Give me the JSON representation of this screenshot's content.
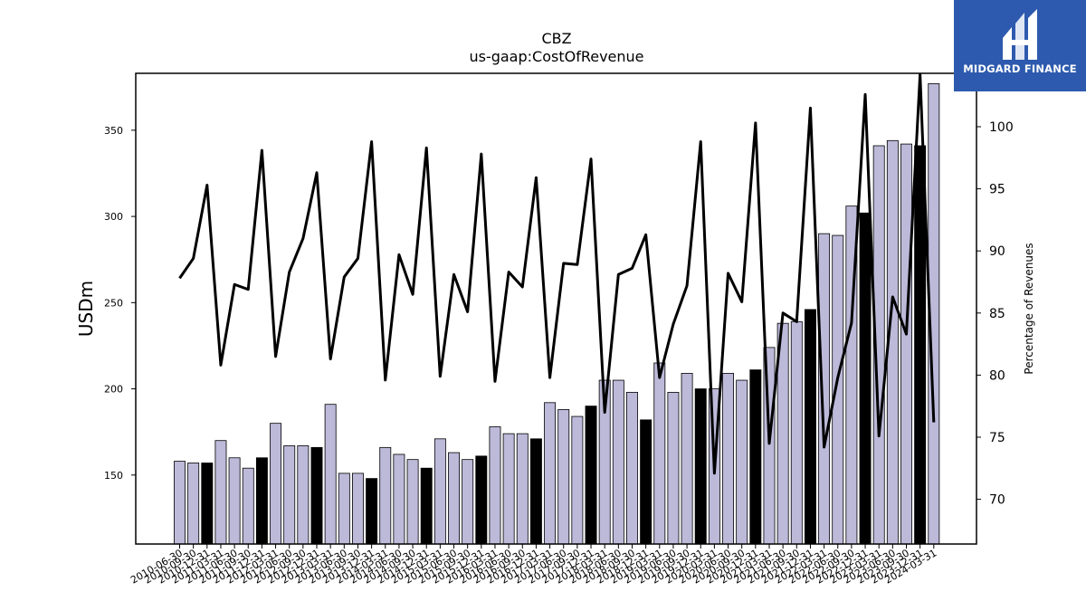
{
  "chart_data": {
    "type": "bar+line",
    "title": "CBZ",
    "subtitle": "us-gaap:CostOfRevenue",
    "ylabel_left": "USDm",
    "ylabel_right": "Percentage of Revenues",
    "ylim_left": [
      110,
      383
    ],
    "ylim_right": [
      66.4,
      104.3
    ],
    "yticks_left": [
      150,
      200,
      250,
      300,
      350
    ],
    "yticks_right": [
      70,
      75,
      80,
      85,
      90,
      95,
      100
    ],
    "x": [
      "2010-06-30",
      "2010-09-30",
      "2010-12-31",
      "2011-03-31",
      "2011-06-30",
      "2011-09-30",
      "2011-12-31",
      "2012-03-31",
      "2012-06-30",
      "2012-09-30",
      "2012-12-31",
      "2013-03-31",
      "2013-06-30",
      "2013-09-30",
      "2013-12-31",
      "2014-03-31",
      "2014-06-30",
      "2014-09-30",
      "2014-12-31",
      "2015-03-31",
      "2015-06-30",
      "2015-09-30",
      "2015-12-31",
      "2016-03-31",
      "2016-06-30",
      "2016-09-30",
      "2016-12-31",
      "2017-03-31",
      "2017-06-30",
      "2017-09-30",
      "2017-12-31",
      "2018-03-31",
      "2018-06-30",
      "2018-09-30",
      "2018-12-31",
      "2019-03-31",
      "2019-06-30",
      "2019-09-30",
      "2019-12-31",
      "2020-03-31",
      "2020-06-30",
      "2020-09-30",
      "2020-12-31",
      "2021-03-31",
      "2021-06-30",
      "2021-09-30",
      "2021-12-31",
      "2022-03-31",
      "2022-06-30",
      "2022-09-30",
      "2022-12-31",
      "2023-03-31",
      "2023-06-30",
      "2023-09-30",
      "2023-12-31",
      "2024-03-31"
    ],
    "bars": {
      "name": "CostOfRevenue",
      "values": [
        158,
        157,
        157,
        170,
        160,
        154,
        160,
        180,
        167,
        167,
        166,
        191,
        151,
        151,
        148,
        166,
        162,
        159,
        154,
        171,
        163,
        159,
        161,
        178,
        174,
        174,
        171,
        192,
        188,
        184,
        190,
        205,
        205,
        198,
        182,
        215,
        198,
        209,
        200,
        200,
        209,
        205,
        211,
        224,
        238,
        239,
        246,
        290,
        289,
        306,
        302,
        341,
        344,
        342,
        341,
        377
      ],
      "highlight": [
        false,
        false,
        true,
        false,
        false,
        false,
        true,
        false,
        false,
        false,
        true,
        false,
        false,
        false,
        true,
        false,
        false,
        false,
        true,
        false,
        false,
        false,
        true,
        false,
        false,
        false,
        true,
        false,
        false,
        false,
        true,
        false,
        false,
        false,
        true,
        false,
        false,
        false,
        true,
        false,
        false,
        false,
        true,
        false,
        false,
        false,
        true,
        false,
        false,
        false,
        true,
        false,
        false,
        false,
        true,
        false
      ],
      "color": "#bcb9d9",
      "highlight_color": "#000000"
    },
    "line": {
      "name": "Percentage of Revenues",
      "values": [
        87.8,
        89.4,
        95.3,
        80.8,
        87.3,
        86.9,
        98.1,
        81.5,
        88.3,
        91.0,
        96.3,
        81.3,
        87.9,
        89.4,
        98.8,
        79.6,
        89.7,
        86.5,
        98.3,
        79.9,
        88.1,
        85.1,
        97.8,
        79.5,
        88.3,
        87.1,
        95.9,
        79.8,
        89.0,
        88.9,
        97.4,
        77.0,
        88.1,
        88.6,
        91.3,
        79.8,
        84.1,
        87.2,
        98.8,
        72.1,
        88.2,
        85.9,
        100.3,
        74.5,
        85.0,
        84.3,
        101.5,
        74.2,
        79.8,
        84.2,
        102.6,
        75.1,
        86.3,
        83.3,
        104.2,
        76.2
      ],
      "color": "#000000"
    },
    "grid": false,
    "legend": "none"
  },
  "logo": {
    "text": "MIDGARD FINANCE",
    "bg_color": "#2d5aae",
    "fg_color": "#ffffff"
  }
}
